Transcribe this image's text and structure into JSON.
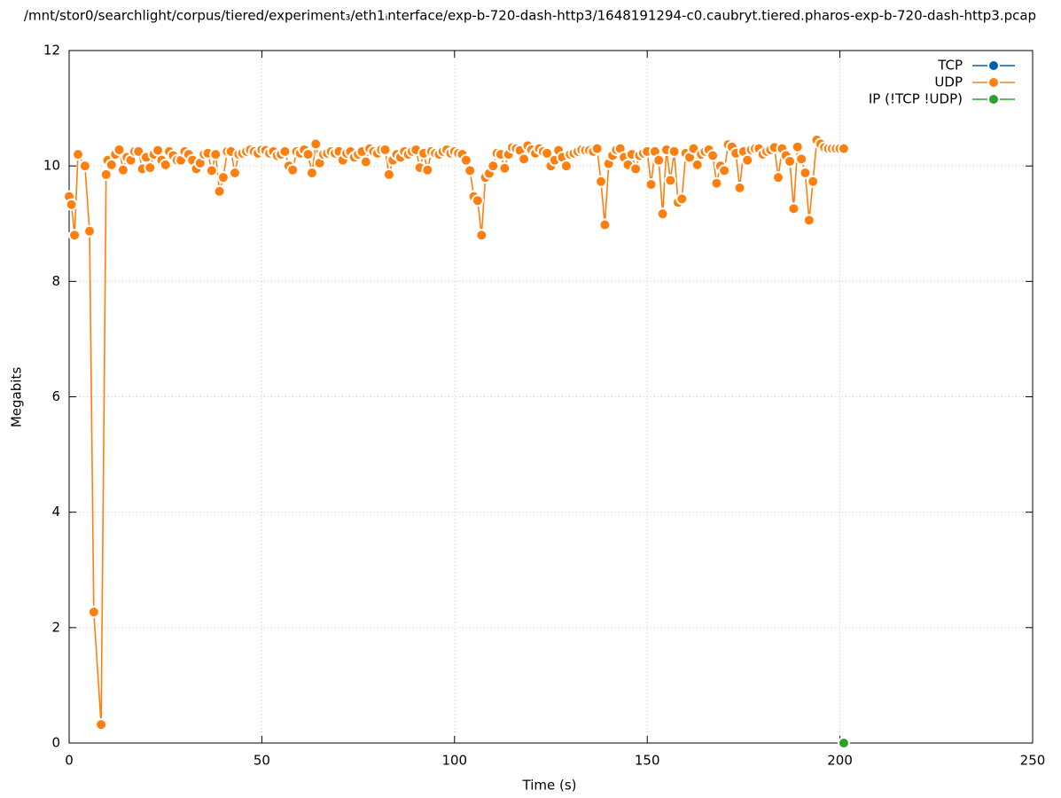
{
  "chart_data": {
    "type": "line",
    "title": "/mnt/stor0/searchlight/corpus/tiered/experiment₃/eth1ᵢnterface/exp-b-720-dash-http3/1648191294-c0.caubryt.tiered.pharos-exp-b-720-dash-http3.pcap",
    "xlabel": "Time (s)",
    "ylabel": "Megabits",
    "xlim": [
      0,
      250
    ],
    "xticks": [
      0,
      50,
      100,
      150,
      200,
      250
    ],
    "ylim": [
      0,
      12
    ],
    "yticks": [
      0,
      2,
      4,
      6,
      8,
      10,
      12
    ],
    "grid": true,
    "legend": "top-right",
    "series": [
      {
        "name": "TCP",
        "color": "#0060ad",
        "x": [],
        "values": []
      },
      {
        "name": "UDP",
        "color": "#ff7f0e",
        "x": [
          0,
          0.6,
          1.4,
          2.3,
          4.1,
          5.3,
          6.4,
          8.3,
          9.6,
          10,
          11,
          12,
          13,
          14,
          15,
          16,
          17,
          18,
          19,
          20,
          21,
          22,
          23,
          24,
          25,
          26,
          27,
          28,
          29,
          30,
          31,
          32,
          33,
          34,
          35,
          36,
          37,
          38,
          39,
          40,
          41,
          42,
          43,
          44,
          45,
          46,
          47,
          48,
          49,
          50,
          51,
          52,
          53,
          54,
          55,
          56,
          57,
          58,
          59,
          60,
          61,
          62,
          63,
          64,
          65,
          66,
          67,
          68,
          69,
          70,
          71,
          72,
          73,
          74,
          75,
          76,
          77,
          78,
          79,
          80,
          81,
          82,
          83,
          84,
          85,
          86,
          87,
          88,
          89,
          90,
          91,
          92,
          93,
          94,
          95,
          96,
          97,
          98,
          99,
          100,
          101,
          102,
          103,
          104,
          105,
          106,
          107,
          108,
          109,
          110,
          111,
          112,
          113,
          114,
          115,
          116,
          117,
          118,
          119,
          120,
          121,
          122,
          123,
          124,
          125,
          126,
          127,
          128,
          129,
          130,
          131,
          132,
          133,
          134,
          135,
          136,
          137,
          138,
          139,
          140,
          141,
          142,
          143,
          144,
          145,
          146,
          147,
          148,
          149,
          150,
          151,
          152,
          153,
          154,
          155,
          156,
          157,
          158,
          159,
          160,
          161,
          162,
          163,
          164,
          165,
          166,
          167,
          168,
          169,
          170,
          171,
          172,
          173,
          174,
          175,
          176,
          177,
          178,
          179,
          180,
          181,
          182,
          183,
          184,
          185,
          186,
          187,
          188,
          189,
          190,
          191,
          192,
          193,
          194,
          195,
          196,
          197,
          198,
          199,
          200,
          201
        ],
        "values": [
          9.47,
          9.33,
          8.8,
          10.2,
          10.0,
          8.87,
          2.27,
          0.32,
          9.85,
          10.1,
          10.02,
          10.2,
          10.28,
          9.93,
          10.15,
          10.1,
          10.25,
          10.25,
          9.95,
          10.15,
          9.97,
          10.2,
          10.27,
          10.1,
          10.02,
          10.25,
          10.18,
          10.1,
          10.1,
          10.25,
          10.2,
          10.1,
          9.95,
          10.05,
          10.2,
          10.22,
          9.92,
          10.2,
          9.56,
          9.8,
          10.25,
          10.25,
          9.88,
          10.2,
          10.22,
          10.25,
          10.28,
          10.25,
          10.22,
          10.28,
          10.27,
          10.22,
          10.25,
          10.18,
          10.2,
          10.25,
          10.0,
          9.93,
          10.25,
          10.22,
          10.28,
          10.2,
          9.88,
          10.38,
          10.05,
          10.2,
          10.22,
          10.25,
          10.22,
          10.25,
          10.1,
          10.22,
          10.25,
          10.15,
          10.2,
          10.25,
          10.07,
          10.3,
          10.25,
          10.22,
          10.28,
          10.28,
          9.85,
          10.1,
          10.2,
          10.15,
          10.25,
          10.2,
          10.25,
          10.28,
          9.97,
          10.22,
          9.93,
          10.25,
          10.22,
          10.2,
          10.25,
          10.28,
          10.22,
          10.25,
          10.22,
          10.2,
          10.1,
          9.92,
          9.47,
          9.4,
          8.8,
          9.8,
          9.87,
          10.0,
          10.22,
          10.2,
          9.96,
          10.2,
          10.32,
          10.3,
          10.27,
          10.12,
          10.35,
          10.28,
          10.22,
          10.3,
          10.25,
          10.22,
          10.0,
          10.1,
          10.27,
          10.15,
          10.0,
          10.2,
          10.22,
          10.25,
          10.28,
          10.27,
          10.27,
          10.25,
          10.3,
          9.73,
          8.98,
          10.04,
          10.18,
          10.28,
          10.3,
          10.15,
          10.02,
          10.2,
          9.95,
          10.18,
          10.22,
          10.25,
          9.68,
          10.25,
          10.1,
          9.17,
          10.28,
          9.75,
          10.25,
          9.37,
          9.43,
          10.22,
          10.15,
          10.3,
          10.02,
          10.2,
          10.25,
          10.28,
          10.18,
          9.7,
          10.0,
          9.92,
          10.37,
          10.33,
          10.22,
          9.62,
          10.25,
          10.1,
          10.28,
          10.3,
          10.3,
          10.2,
          10.25,
          10.28,
          10.32,
          9.8,
          10.3,
          10.18,
          10.08,
          9.26,
          10.33,
          10.12,
          9.88,
          9.06,
          9.73,
          10.45,
          10.38,
          10.32,
          10.3,
          10.3,
          10.3,
          10.3,
          10.3
        ]
      },
      {
        "name": "IP (!TCP  !UDP)",
        "color": "#2ca02c",
        "x": [
          201
        ],
        "values": [
          0
        ]
      }
    ]
  }
}
